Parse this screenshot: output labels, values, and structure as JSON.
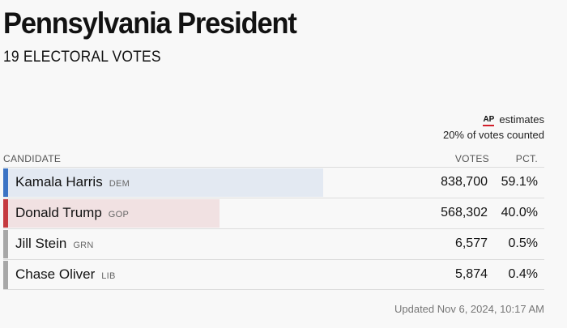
{
  "race": {
    "title": "Pennsylvania President",
    "subtitle": "19 ELECTORAL VOTES"
  },
  "estimates": {
    "logo": "AP",
    "label": "estimates",
    "counted": "20% of votes counted"
  },
  "table": {
    "headers": {
      "candidate": "CANDIDATE",
      "votes": "VOTES",
      "pct": "PCT."
    },
    "rows": [
      {
        "name": "Kamala Harris",
        "party": "DEM",
        "votes": "838,700",
        "pct": "59.1%",
        "share": 0.591,
        "stripe_color": "#3b73c4",
        "bar_color": "#e3e9f2"
      },
      {
        "name": "Donald Trump",
        "party": "GOP",
        "votes": "568,302",
        "pct": "40.0%",
        "share": 0.4,
        "stripe_color": "#c53a3f",
        "bar_color": "#f1e1e2"
      },
      {
        "name": "Jill Stein",
        "party": "GRN",
        "votes": "6,577",
        "pct": "0.5%",
        "share": 0.005,
        "stripe_color": "#a7a7a7",
        "bar_color": "#ececec"
      },
      {
        "name": "Chase Oliver",
        "party": "LIB",
        "votes": "5,874",
        "pct": "0.4%",
        "share": 0.004,
        "stripe_color": "#a7a7a7",
        "bar_color": "#ececec"
      }
    ]
  },
  "footer": {
    "updated": "Updated Nov 6, 2024, 10:17 AM"
  }
}
